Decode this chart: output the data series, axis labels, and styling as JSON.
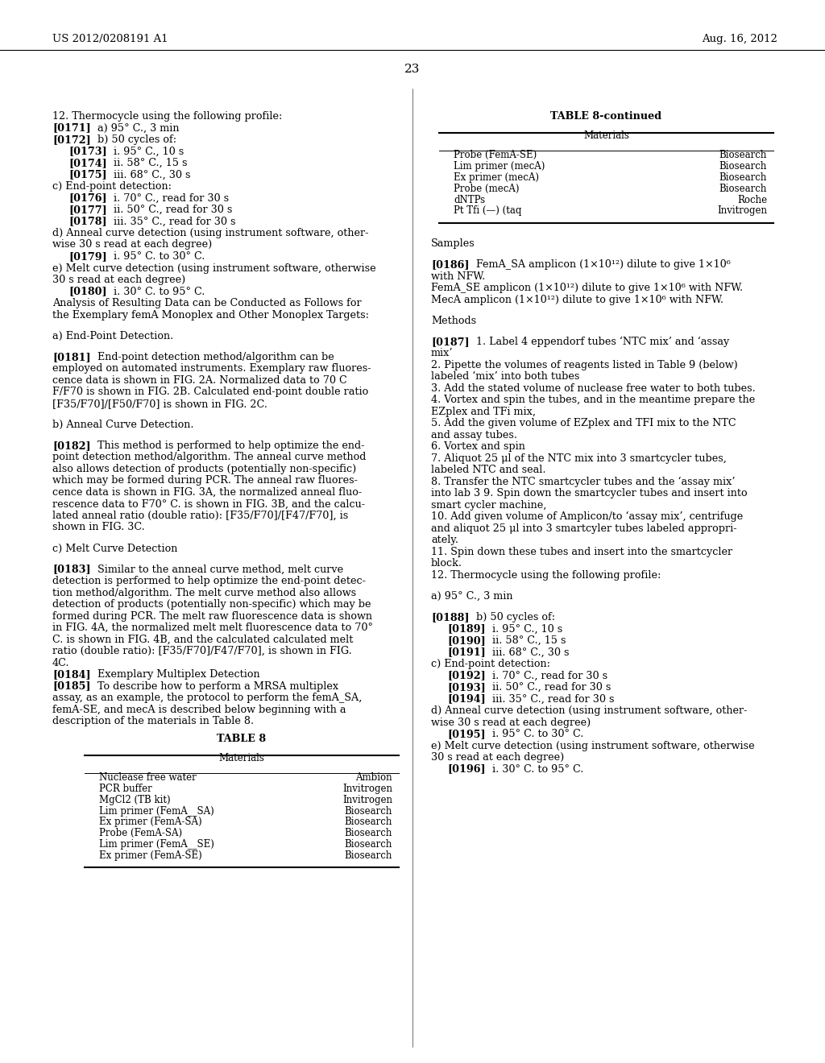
{
  "header_left": "US 2012/0208191 A1",
  "header_right": "Aug. 16, 2012",
  "page_number": "23",
  "background_color": "#ffffff",
  "table8cont_rows": [
    [
      "Probe (FemA-SE)",
      "Biosearch"
    ],
    [
      "Lim primer (mecA)",
      "Biosearch"
    ],
    [
      "Ex primer (mecA)",
      "Biosearch"
    ],
    [
      "Probe (mecA)",
      "Biosearch"
    ],
    [
      "dNTPs",
      "Roche"
    ],
    [
      "Pt Tfi (—) (taq",
      "Invitrogen"
    ]
  ],
  "table8_rows": [
    [
      "Nuclease free water",
      "Ambion"
    ],
    [
      "PCR buffer",
      "Invitrogen"
    ],
    [
      "MgCl2 (TB kit)",
      "Invitrogen"
    ],
    [
      "Lim primer (FemA__SA)",
      "Biosearch"
    ],
    [
      "Ex primer (FemA-SA)",
      "Biosearch"
    ],
    [
      "Probe (FemA-SA)",
      "Biosearch"
    ],
    [
      "Lim primer (FemA__SE)",
      "Biosearch"
    ],
    [
      "Ex primer (FemA-SE)",
      "Biosearch"
    ]
  ]
}
